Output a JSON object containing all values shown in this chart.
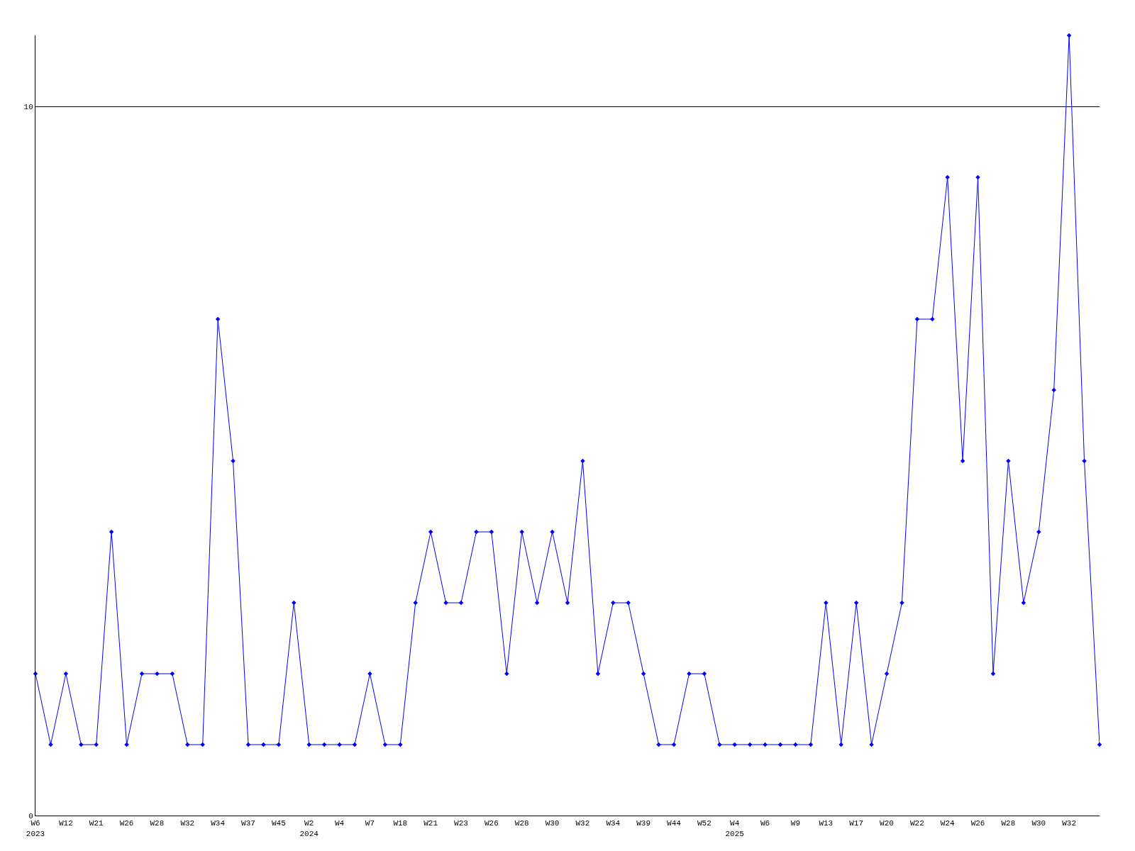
{
  "chart_data": {
    "type": "line",
    "categories": [
      "W6\n2023",
      null,
      "W12",
      null,
      "W21",
      null,
      "W26",
      null,
      "W28",
      null,
      "W32",
      null,
      "W34",
      null,
      "W37",
      null,
      "W45",
      null,
      "W2\n2024",
      null,
      "W4",
      null,
      "W7",
      null,
      "W18",
      null,
      "W21",
      null,
      "W23",
      null,
      "W26",
      null,
      "W28",
      null,
      "W30",
      null,
      "W32",
      null,
      "W34",
      null,
      "W39",
      null,
      "W44",
      null,
      "W52",
      null,
      "W4\n2025",
      null,
      "W6",
      null,
      "W9",
      null,
      "W13",
      null,
      "W17",
      null,
      "W20",
      null,
      "W22",
      null,
      "W24",
      null,
      "W26",
      null,
      "W28",
      null,
      "W30",
      null,
      "W32",
      null,
      null
    ],
    "series": [
      {
        "color": "#0000ff",
        "values": [
          2,
          1,
          2,
          1,
          1,
          4,
          1,
          2,
          2,
          2,
          1,
          1,
          7,
          5,
          1,
          1,
          1,
          3,
          1,
          1,
          1,
          1,
          2,
          1,
          1,
          3,
          4,
          3,
          3,
          4,
          4,
          2,
          4,
          3,
          4,
          3,
          5,
          2,
          3,
          3,
          2,
          1,
          1,
          2,
          2,
          1,
          1,
          1,
          1,
          1,
          1,
          1,
          3,
          1,
          3,
          1,
          2,
          3,
          7,
          7,
          9,
          5,
          9,
          2,
          5,
          3,
          4,
          6,
          11,
          5,
          1
        ]
      }
    ],
    "ylim": [
      0,
      11
    ],
    "yticks": [
      0,
      10
    ],
    "grid": "y",
    "legend": false,
    "marker": "diamond",
    "line_style": "solid"
  }
}
